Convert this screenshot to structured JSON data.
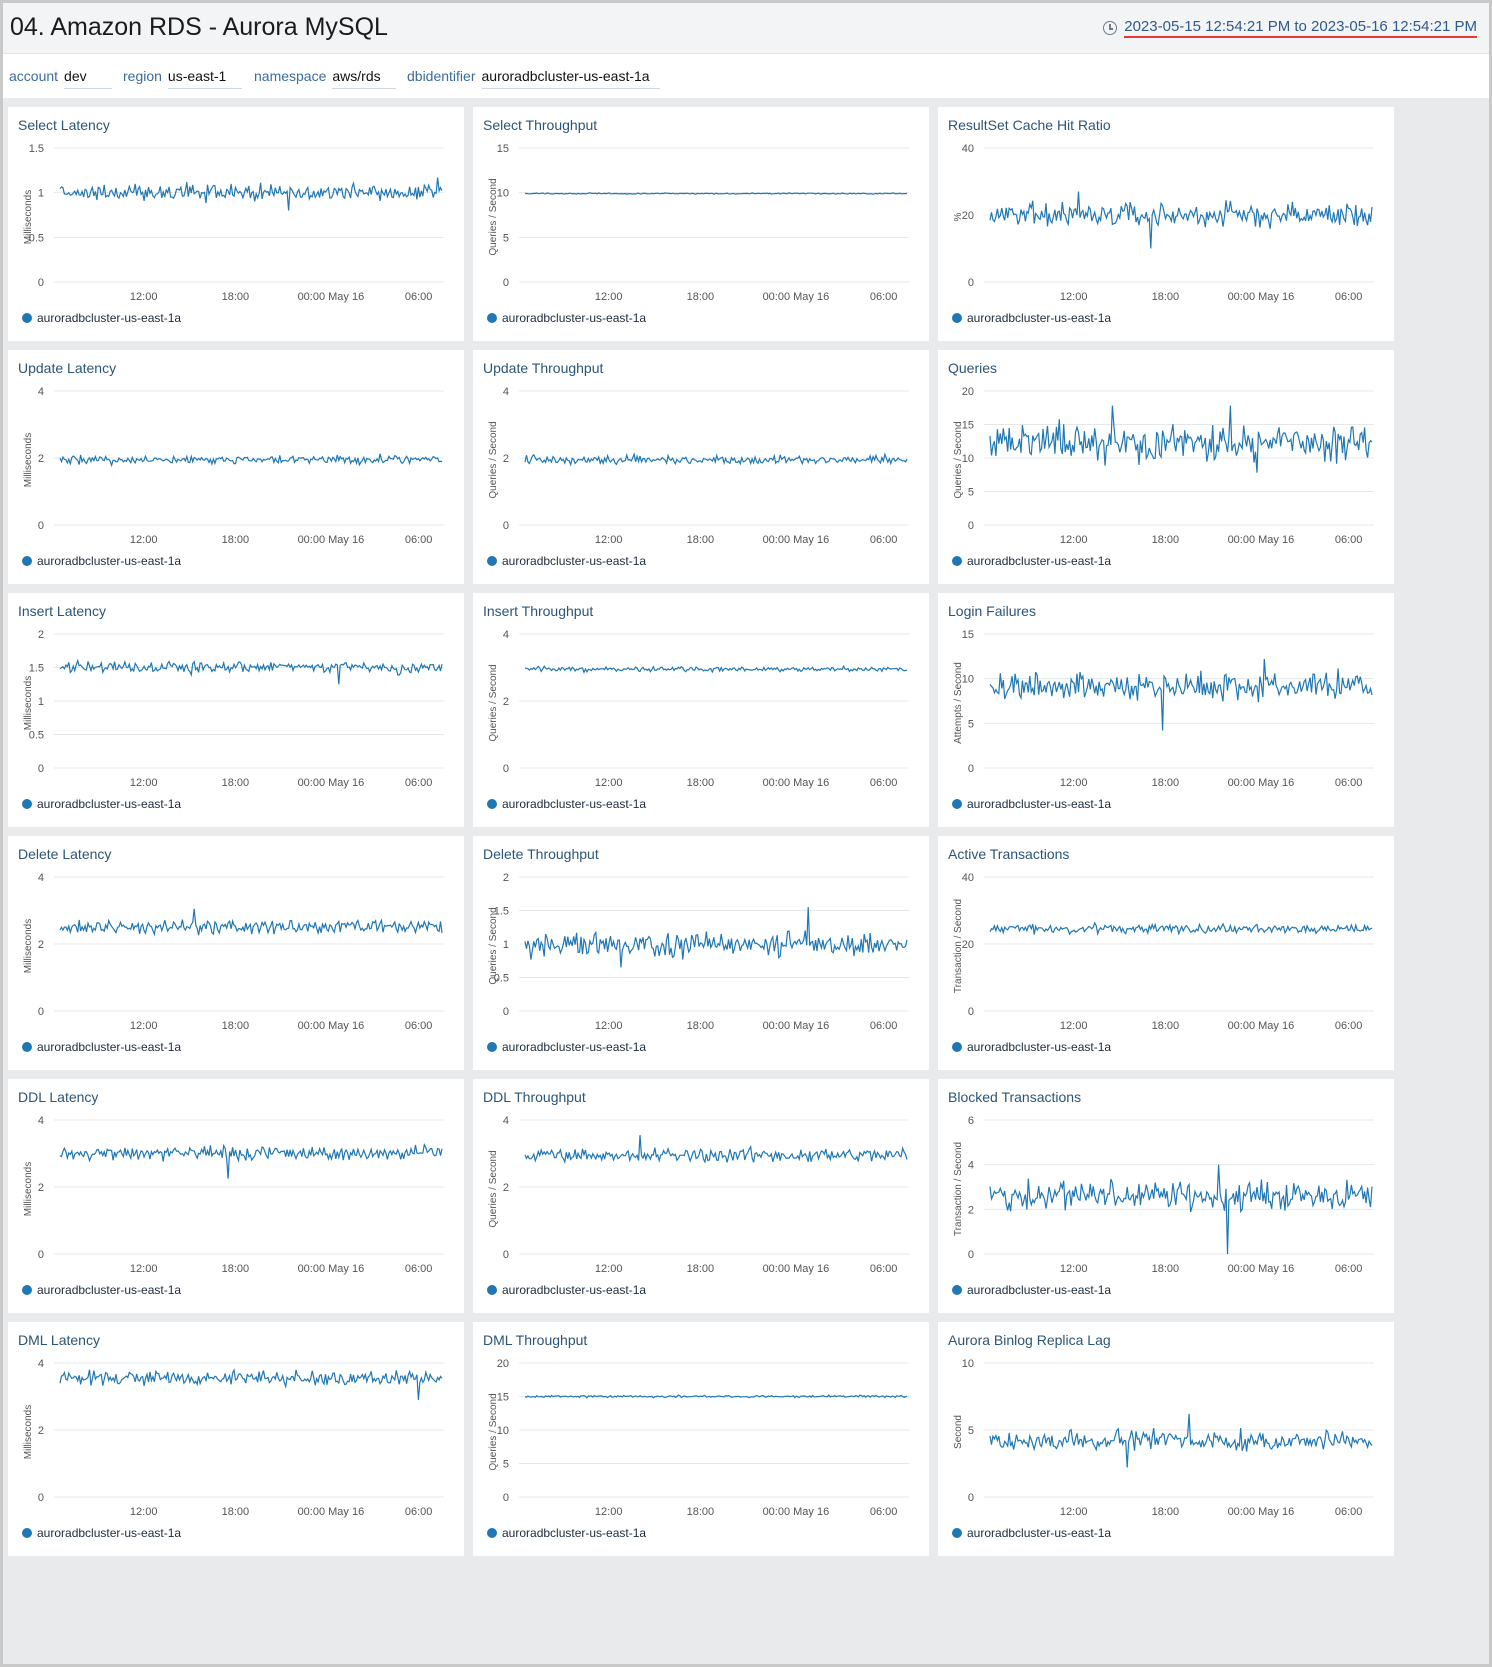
{
  "dashboard": {
    "title": "04. Amazon RDS - Aurora MySQL",
    "time_range": "2023-05-15 12:54:21 PM to 2023-05-16 12:54:21 PM"
  },
  "filters": [
    {
      "label": "account",
      "value": "dev"
    },
    {
      "label": "region",
      "value": "us-east-1"
    },
    {
      "label": "namespace",
      "value": "aws/rds"
    },
    {
      "label": "dbidentifier",
      "value": "auroradbcluster-us-east-1a"
    }
  ],
  "colors": {
    "series": "#1f77b4",
    "grid": "#e5e8eb",
    "axis_text": "#555",
    "title": "#2c5577"
  },
  "x_ticks": [
    "12:00",
    "18:00",
    "00:00 May 16",
    "06:00"
  ],
  "series_name": "auroradbcluster-us-east-1a",
  "chart_data": [
    {
      "type": "line",
      "title": "Select Latency",
      "ylabel": "Milliseconds",
      "ylim": [
        0,
        1.5
      ],
      "yticks": [
        "0",
        "0.5",
        "1",
        "1.5"
      ],
      "series": [
        {
          "name": "auroradbcluster-us-east-1a",
          "base": 1.0,
          "noise": 0.06,
          "spikes": [
            [
              0.6,
              -0.2
            ],
            [
              0.99,
              0.17
            ]
          ]
        }
      ]
    },
    {
      "type": "line",
      "title": "Select Throughput",
      "ylabel": "Queries / Second",
      "ylim": [
        0,
        15
      ],
      "yticks": [
        "0",
        "5",
        "10",
        "15"
      ],
      "series": [
        {
          "name": "auroradbcluster-us-east-1a",
          "base": 9.9,
          "noise": 0.05,
          "spikes": []
        }
      ]
    },
    {
      "type": "line",
      "title": "ResultSet Cache Hit Ratio",
      "ylabel": "%",
      "ylim": [
        0,
        40
      ],
      "yticks": [
        "0",
        "20",
        "40"
      ],
      "series": [
        {
          "name": "auroradbcluster-us-east-1a",
          "base": 20,
          "noise": 2.5,
          "spikes": [
            [
              0.42,
              -10
            ],
            [
              0.23,
              7
            ]
          ]
        }
      ]
    },
    {
      "type": "line",
      "title": "Update Latency",
      "ylabel": "Milliseconds",
      "ylim": [
        0,
        4
      ],
      "yticks": [
        "0",
        "2",
        "4"
      ],
      "series": [
        {
          "name": "auroradbcluster-us-east-1a",
          "base": 1.95,
          "noise": 0.09,
          "spikes": []
        }
      ]
    },
    {
      "type": "line",
      "title": "Update Throughput",
      "ylabel": "Queries / Second",
      "ylim": [
        0,
        4
      ],
      "yticks": [
        "0",
        "2",
        "4"
      ],
      "series": [
        {
          "name": "auroradbcluster-us-east-1a",
          "base": 1.95,
          "noise": 0.09,
          "spikes": []
        }
      ]
    },
    {
      "type": "line",
      "title": "Queries",
      "ylabel": "Queries / Second",
      "ylim": [
        0,
        20
      ],
      "yticks": [
        "0",
        "5",
        "10",
        "15",
        "20"
      ],
      "series": [
        {
          "name": "auroradbcluster-us-east-1a",
          "base": 12.3,
          "noise": 1.8,
          "spikes": [
            [
              0.32,
              5.5
            ],
            [
              0.63,
              5.5
            ],
            [
              0.7,
              -4.5
            ]
          ]
        }
      ]
    },
    {
      "type": "line",
      "title": "Insert Latency",
      "ylabel": "Milliseconds",
      "ylim": [
        0,
        2
      ],
      "yticks": [
        "0",
        "0.5",
        "1",
        "1.5",
        "2"
      ],
      "series": [
        {
          "name": "auroradbcluster-us-east-1a",
          "base": 1.5,
          "noise": 0.06,
          "spikes": [
            [
              0.73,
              -0.25
            ]
          ]
        }
      ]
    },
    {
      "type": "line",
      "title": "Insert Throughput",
      "ylabel": "Queries / Second",
      "ylim": [
        0,
        4
      ],
      "yticks": [
        "0",
        "2",
        "4"
      ],
      "series": [
        {
          "name": "auroradbcluster-us-east-1a",
          "base": 2.95,
          "noise": 0.05,
          "spikes": []
        }
      ]
    },
    {
      "type": "line",
      "title": "Login Failures",
      "ylabel": "Attempts / Second",
      "ylim": [
        0,
        15
      ],
      "yticks": [
        "0",
        "5",
        "10",
        "15"
      ],
      "series": [
        {
          "name": "auroradbcluster-us-east-1a",
          "base": 9.2,
          "noise": 1.1,
          "spikes": [
            [
              0.45,
              -5
            ],
            [
              0.72,
              3
            ]
          ]
        }
      ]
    },
    {
      "type": "line",
      "title": "Delete Latency",
      "ylabel": "Milliseconds",
      "ylim": [
        0,
        4
      ],
      "yticks": [
        "0",
        "2",
        "4"
      ],
      "series": [
        {
          "name": "auroradbcluster-us-east-1a",
          "base": 2.5,
          "noise": 0.14,
          "spikes": [
            [
              0.35,
              0.55
            ]
          ]
        }
      ]
    },
    {
      "type": "line",
      "title": "Delete Throughput",
      "ylabel": "Queries / Second",
      "ylim": [
        0,
        2
      ],
      "yticks": [
        "0",
        "0.5",
        "1",
        "1.5",
        "2"
      ],
      "series": [
        {
          "name": "auroradbcluster-us-east-1a",
          "base": 1.0,
          "noise": 0.13,
          "spikes": [
            [
              0.74,
              0.55
            ],
            [
              0.25,
              -0.35
            ]
          ]
        }
      ]
    },
    {
      "type": "line",
      "title": "Active Transactions",
      "ylabel": "Transaction / Second",
      "ylim": [
        0,
        40
      ],
      "yticks": [
        "0",
        "20",
        "40"
      ],
      "series": [
        {
          "name": "auroradbcluster-us-east-1a",
          "base": 24.5,
          "noise": 1.0,
          "spikes": [
            [
              0.5,
              3.5
            ]
          ]
        }
      ]
    },
    {
      "type": "line",
      "title": "DDL Latency",
      "ylabel": "Milliseconds",
      "ylim": [
        0,
        4
      ],
      "yticks": [
        "0",
        "2",
        "4"
      ],
      "series": [
        {
          "name": "auroradbcluster-us-east-1a",
          "base": 3.0,
          "noise": 0.14,
          "spikes": [
            [
              0.44,
              -0.75
            ]
          ]
        }
      ]
    },
    {
      "type": "line",
      "title": "DDL Throughput",
      "ylabel": "Queries / Second",
      "ylim": [
        0,
        4
      ],
      "yticks": [
        "0",
        "2",
        "4"
      ],
      "series": [
        {
          "name": "auroradbcluster-us-east-1a",
          "base": 2.95,
          "noise": 0.15,
          "spikes": [
            [
              0.3,
              0.6
            ]
          ]
        }
      ]
    },
    {
      "type": "line",
      "title": "Blocked Transactions",
      "ylabel": "Transaction / Second",
      "ylim": [
        0,
        6
      ],
      "yticks": [
        "0",
        "2",
        "4",
        "6"
      ],
      "series": [
        {
          "name": "auroradbcluster-us-east-1a",
          "base": 2.6,
          "noise": 0.45,
          "spikes": [
            [
              0.62,
              -2.6
            ],
            [
              0.6,
              1.4
            ]
          ]
        }
      ]
    },
    {
      "type": "line",
      "title": "DML Latency",
      "ylabel": "Milliseconds",
      "ylim": [
        0,
        4
      ],
      "yticks": [
        "0",
        "2",
        "4"
      ],
      "series": [
        {
          "name": "auroradbcluster-us-east-1a",
          "base": 3.55,
          "noise": 0.15,
          "spikes": [
            [
              0.94,
              -0.65
            ]
          ]
        }
      ]
    },
    {
      "type": "line",
      "title": "DML Throughput",
      "ylabel": "Queries / Second",
      "ylim": [
        0,
        20
      ],
      "yticks": [
        "0",
        "5",
        "10",
        "15",
        "20"
      ],
      "series": [
        {
          "name": "auroradbcluster-us-east-1a",
          "base": 15.0,
          "noise": 0.12,
          "spikes": []
        }
      ]
    },
    {
      "type": "line",
      "title": "Aurora Binlog Replica Lag",
      "ylabel": "Second",
      "ylim": [
        0,
        10
      ],
      "yticks": [
        "0",
        "5",
        "10"
      ],
      "series": [
        {
          "name": "auroradbcluster-us-east-1a",
          "base": 4.2,
          "noise": 0.5,
          "spikes": [
            [
              0.36,
              -2.0
            ],
            [
              0.52,
              2.0
            ]
          ]
        }
      ]
    }
  ]
}
